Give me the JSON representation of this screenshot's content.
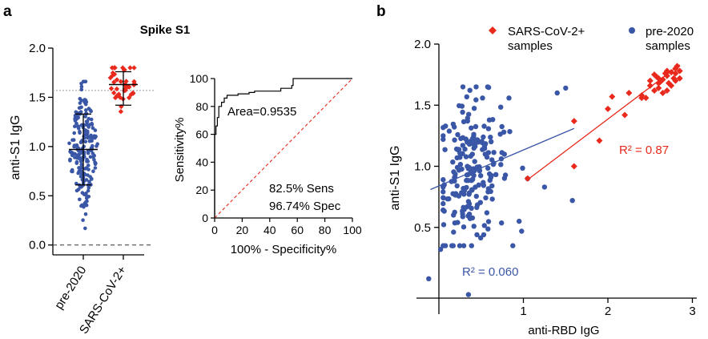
{
  "colors": {
    "pre2020": "#3a56a6",
    "sars": "#e8291c",
    "axis": "#000000",
    "dash": "#999999"
  },
  "chart_data": [
    {
      "panel": "a",
      "type": "scatter",
      "title": "Spike S1",
      "ylabel": "anti-S1 IgG",
      "ylim": [
        -0.1,
        2.0
      ],
      "yticks": [
        "0.0",
        "0.5",
        "1.0",
        "1.5",
        "2.0"
      ],
      "categories": [
        "pre-2020",
        "SARS-CoV-2+"
      ],
      "threshold": 1.57,
      "series": [
        {
          "category": "pre-2020",
          "mean": 0.97,
          "sd_low": 0.61,
          "sd_high": 1.33,
          "n": 220
        },
        {
          "category": "SARS-CoV-2+",
          "mean": 1.63,
          "sd_low": 1.42,
          "sd_high": 1.76,
          "n": 40
        }
      ]
    },
    {
      "panel": "a",
      "type": "line",
      "xlabel": "100% - Specificity%",
      "ylabel": "Sensitivity%",
      "xlim": [
        0,
        100
      ],
      "ylim": [
        0,
        100
      ],
      "xticks": [
        "0",
        "20",
        "40",
        "60",
        "80",
        "100"
      ],
      "yticks": [
        "0",
        "20",
        "40",
        "60",
        "80",
        "100"
      ],
      "annotation_area": "Area=0.9535",
      "annotation_sens": "82.5% Sens",
      "annotation_spec": "96.74% Spec",
      "roc": [
        [
          0,
          0
        ],
        [
          0,
          60
        ],
        [
          1,
          60
        ],
        [
          1,
          66
        ],
        [
          2,
          66
        ],
        [
          2,
          72
        ],
        [
          3,
          72
        ],
        [
          3,
          80
        ],
        [
          5,
          80
        ],
        [
          5,
          83
        ],
        [
          7,
          83
        ],
        [
          7,
          86
        ],
        [
          9,
          86
        ],
        [
          9,
          88
        ],
        [
          17,
          88
        ],
        [
          17,
          89
        ],
        [
          25,
          89
        ],
        [
          25,
          90
        ],
        [
          29,
          90
        ],
        [
          29,
          91
        ],
        [
          48,
          91
        ],
        [
          48,
          93
        ],
        [
          56,
          93
        ],
        [
          56,
          95
        ],
        [
          57,
          95
        ],
        [
          57,
          100
        ],
        [
          100,
          100
        ]
      ]
    },
    {
      "panel": "b",
      "type": "scatter",
      "xlabel": "anti-RBD IgG",
      "ylabel": "anti-S1 IgG",
      "xlim": [
        -0.35,
        3.2
      ],
      "ylim": [
        -0.1,
        2.0
      ],
      "xticks": [
        "1",
        "2",
        "3"
      ],
      "yticks": [
        "0.5",
        "1.0",
        "1.5",
        "2.0"
      ],
      "legend": [
        "SARS-CoV-2+ samples",
        "pre-2020 samples"
      ],
      "legend_position": "top",
      "r2_pre2020": "R² = 0.060",
      "r2_sars": "R² = 0.87",
      "fit_pre2020": {
        "x": [
          -0.1,
          1.6
        ],
        "y": [
          0.81,
          1.31
        ]
      },
      "fit_sars": {
        "x": [
          1.05,
          2.85
        ],
        "y": [
          0.89,
          1.83
        ]
      },
      "sars_points": [
        [
          1.05,
          0.9
        ],
        [
          1.6,
          1.37
        ],
        [
          1.6,
          1.0
        ],
        [
          1.9,
          1.21
        ],
        [
          2.0,
          1.47
        ],
        [
          2.05,
          1.57
        ],
        [
          2.2,
          1.42
        ],
        [
          2.25,
          1.6
        ],
        [
          2.4,
          1.56
        ],
        [
          2.5,
          1.66
        ],
        [
          2.55,
          1.75
        ],
        [
          2.6,
          1.68
        ],
        [
          2.65,
          1.71
        ],
        [
          2.7,
          1.62
        ],
        [
          2.75,
          1.77
        ],
        [
          2.8,
          1.8
        ],
        [
          2.85,
          1.72
        ],
        [
          2.5,
          1.7
        ],
        [
          2.6,
          1.64
        ],
        [
          2.7,
          1.74
        ],
        [
          2.75,
          1.66
        ],
        [
          2.8,
          1.76
        ],
        [
          2.6,
          1.72
        ],
        [
          2.7,
          1.78
        ],
        [
          2.8,
          1.7
        ],
        [
          2.85,
          1.78
        ],
        [
          2.65,
          1.6
        ],
        [
          2.55,
          1.62
        ],
        [
          2.72,
          1.68
        ],
        [
          2.78,
          1.72
        ],
        [
          2.82,
          1.82
        ],
        [
          2.45,
          1.56
        ],
        [
          2.62,
          1.69
        ],
        [
          2.68,
          1.76
        ],
        [
          2.58,
          1.73
        ],
        [
          2.4,
          1.58
        ]
      ],
      "pre2020_n": 210
    }
  ],
  "panel_labels": {
    "a": "a",
    "b": "b"
  }
}
